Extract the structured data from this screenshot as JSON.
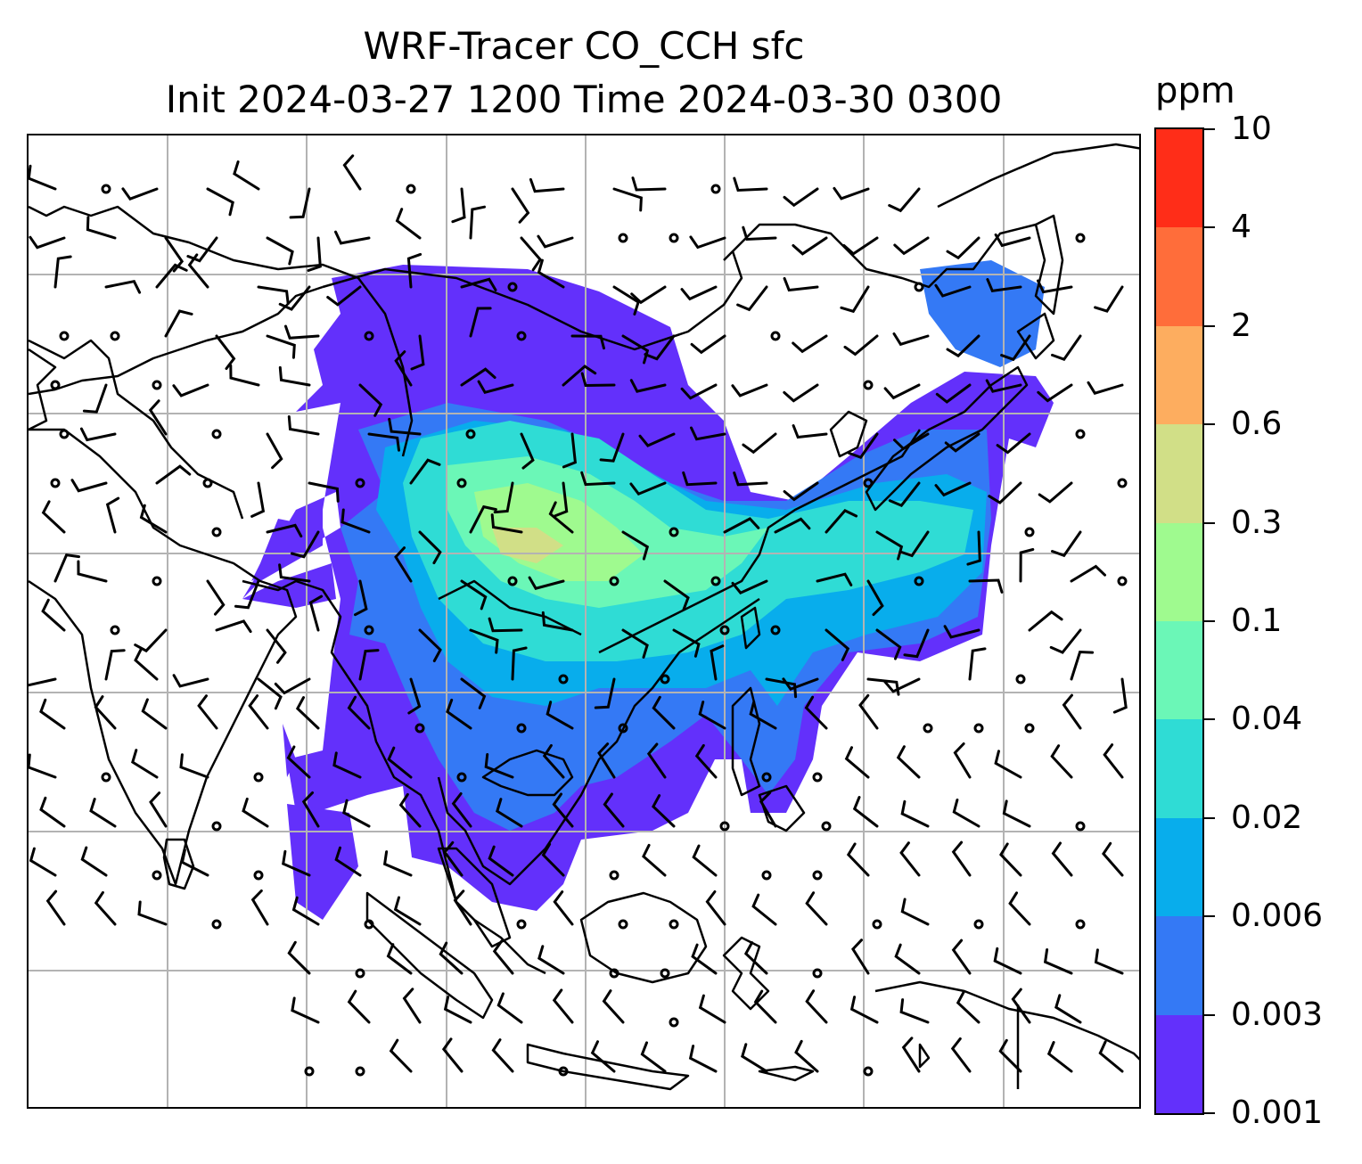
{
  "title": {
    "line1": "WRF-Tracer CO_CCH sfc",
    "line2": "Init 2024-03-27 1200 Time 2024-03-30 0300"
  },
  "colorbar": {
    "units": "ppm",
    "tick_labels": [
      "0.001",
      "0.003",
      "0.006",
      "0.02",
      "0.04",
      "0.1",
      "0.3",
      "0.6",
      "2",
      "4",
      "10"
    ],
    "colors": [
      "#6330fb",
      "#3479f5",
      "#08adec",
      "#2fdcd5",
      "#6bf7b7",
      "#9ffa8f",
      "#d1df87",
      "#fdad5f",
      "#ff6d3a",
      "#ff2d18"
    ]
  },
  "map": {
    "gridlines": "on",
    "coastline_color": "#000000",
    "grid_color": "#b3b3b3"
  }
}
